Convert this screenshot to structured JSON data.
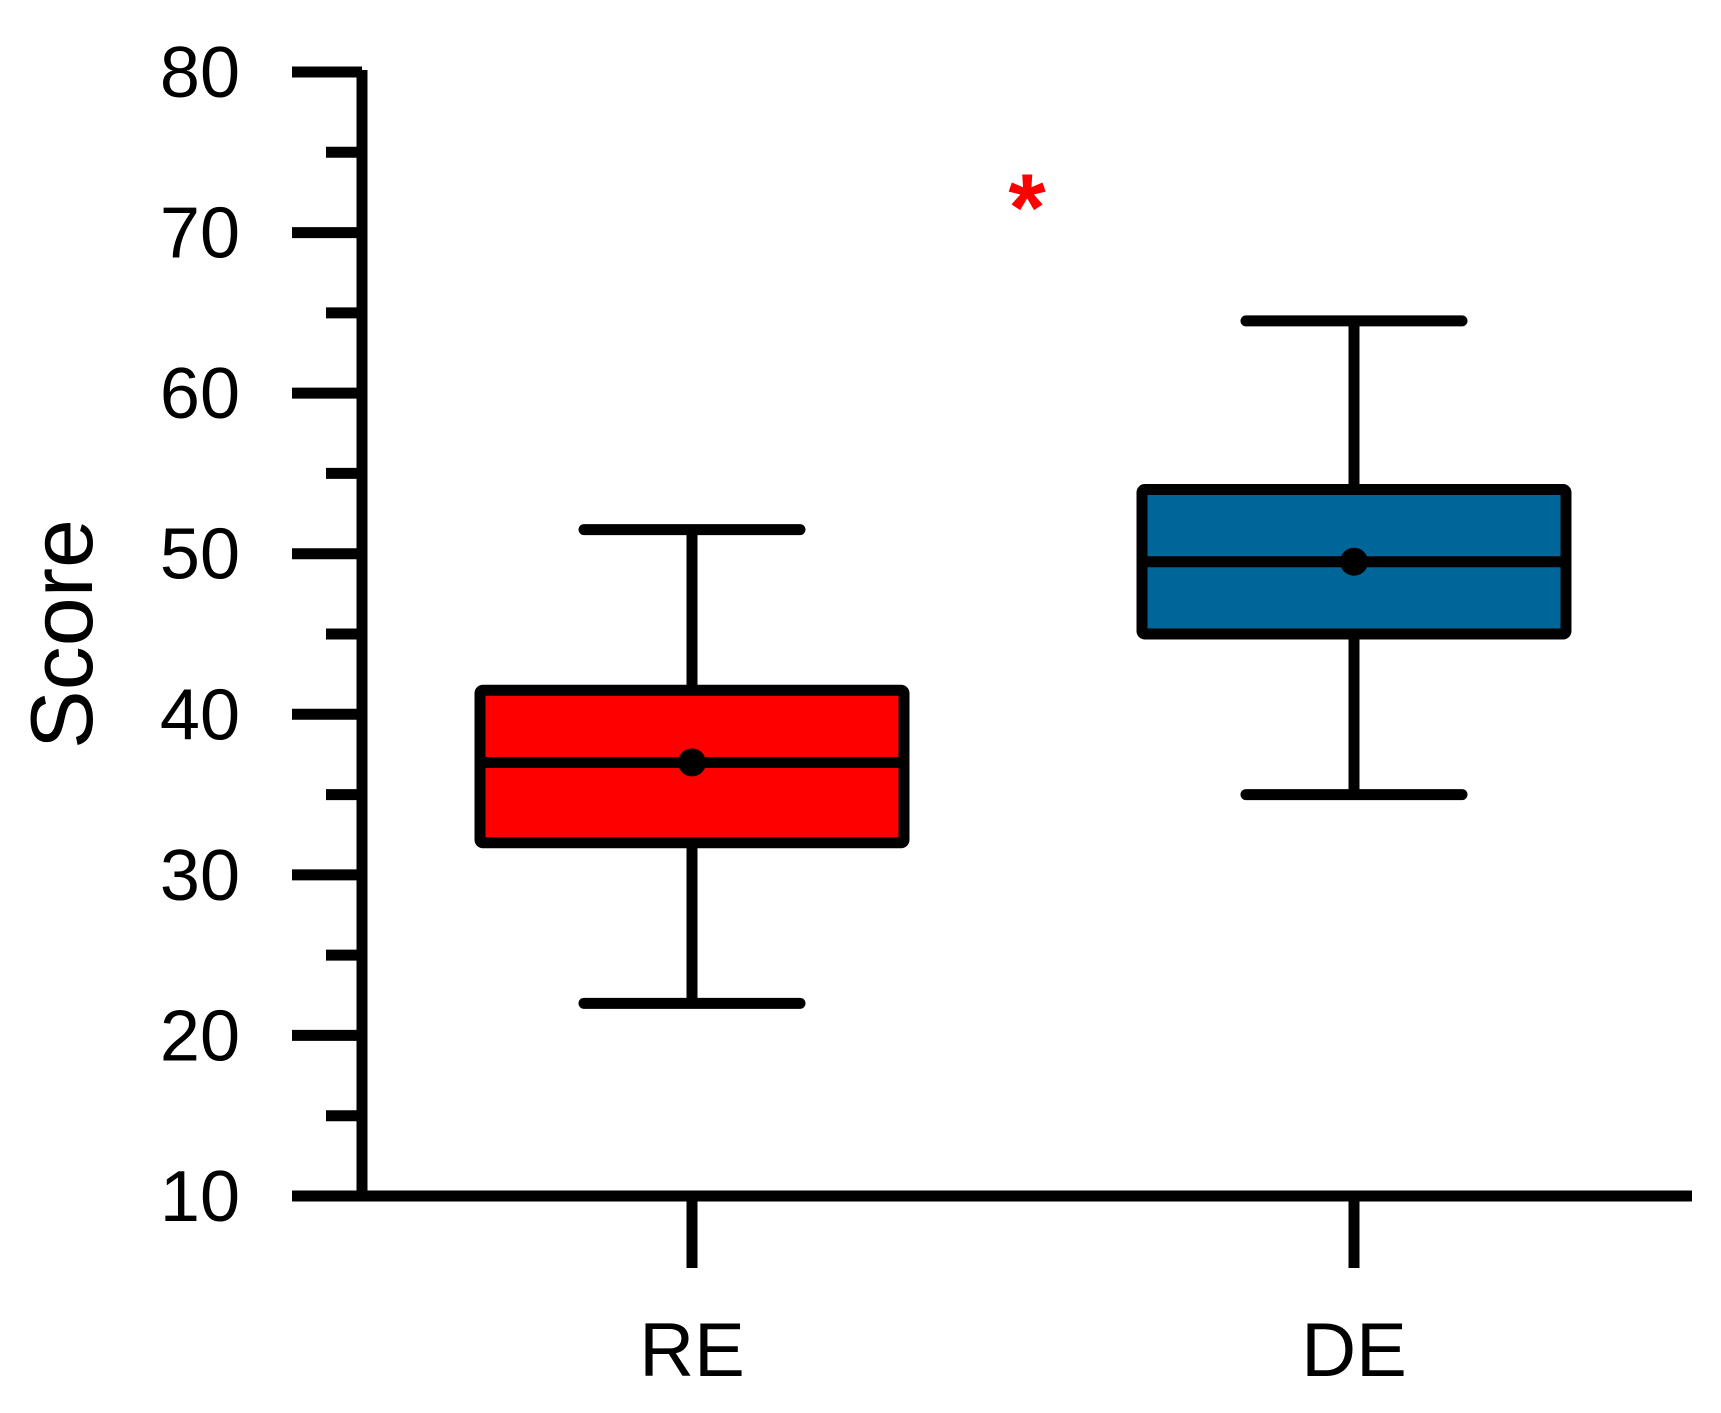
{
  "chart_data": {
    "type": "box",
    "categories": [
      "RE",
      "DE"
    ],
    "ylabel": "Score",
    "xlabel": "",
    "ylim": [
      10,
      80
    ],
    "y_ticks": [
      10,
      20,
      30,
      40,
      50,
      60,
      70,
      80
    ],
    "y_minor_step": 5,
    "grid": false,
    "series": [
      {
        "category": "RE",
        "color": "#ff0000",
        "min": 22,
        "q1": 32,
        "median": 37,
        "mean": 37,
        "q3": 41.5,
        "max": 51.5
      },
      {
        "category": "DE",
        "color": "#006699",
        "min": 35,
        "q1": 45,
        "median": 49.5,
        "mean": 49.5,
        "q3": 54,
        "max": 64.5
      }
    ],
    "annotations": [
      {
        "text": "*",
        "color": "#ff0000",
        "x_between": [
          "RE",
          "DE"
        ],
        "y": 73
      }
    ]
  }
}
